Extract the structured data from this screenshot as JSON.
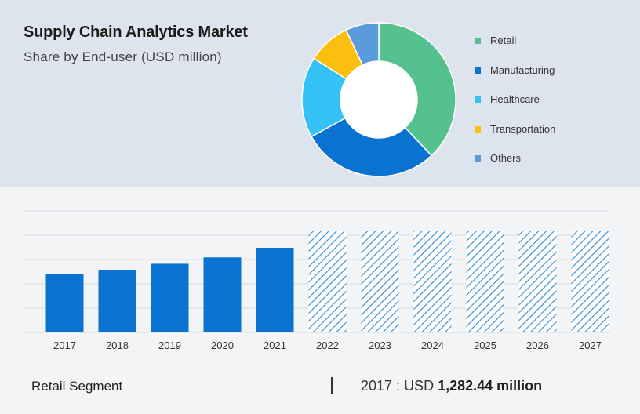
{
  "header": {
    "title": "Supply Chain Analytics Market",
    "subtitle": "Share by End-user (USD million)"
  },
  "chart_data": [
    {
      "type": "pie",
      "style": "donut",
      "legend_position": "right",
      "labels": [
        "Retail",
        "Manufacturing",
        "Healthcare",
        "Transportation",
        "Others"
      ],
      "values": [
        38,
        29,
        17,
        9,
        7
      ],
      "colors": [
        "#55c18e",
        "#0a73d1",
        "#34c2f6",
        "#fbbf0f",
        "#5b9bdc"
      ]
    },
    {
      "type": "bar",
      "categories": [
        "2017",
        "2018",
        "2019",
        "2020",
        "2021",
        "2022",
        "2023",
        "2024",
        "2025",
        "2026",
        "2027"
      ],
      "values": [
        1282.44,
        1370,
        1500,
        1640,
        1850,
        null,
        null,
        null,
        null,
        null,
        null
      ],
      "forecast_categories": [
        "2022",
        "2023",
        "2024",
        "2025",
        "2026",
        "2027"
      ],
      "forecast_pattern": "hatched",
      "value_axis_labels": "not printed",
      "grid": "horizontal",
      "bar_color": "#0a73d1",
      "hatch_color": "#3a8fd6"
    }
  ],
  "footer": {
    "segment_label": "Retail Segment",
    "year": "2017",
    "separator": " : ",
    "currency": "USD",
    "value": "1,282.44 million"
  }
}
